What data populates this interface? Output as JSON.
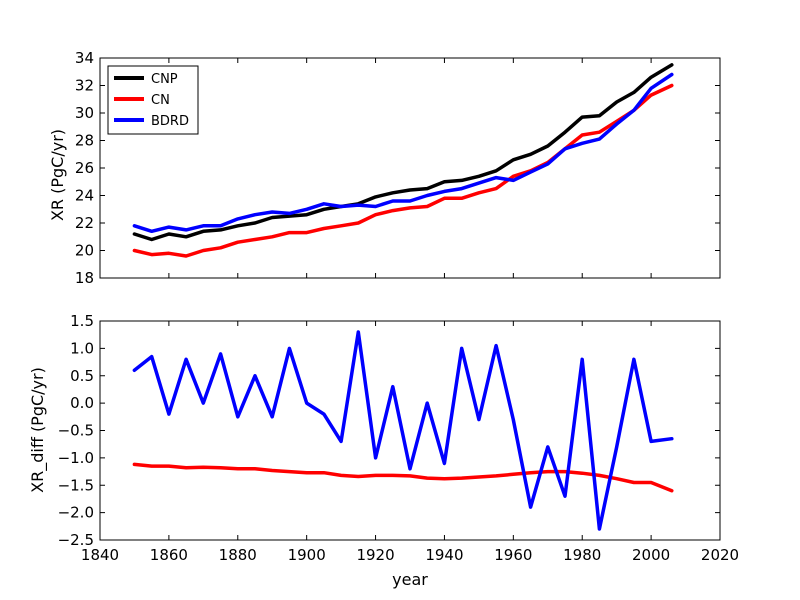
{
  "chart_data": [
    {
      "type": "line",
      "title": "",
      "xlabel": "",
      "ylabel": "XR (PgC/yr)",
      "xlim": [
        1840,
        2020
      ],
      "ylim": [
        18,
        34
      ],
      "yticks": [
        "18",
        "20",
        "22",
        "24",
        "26",
        "28",
        "30",
        "32",
        "34"
      ],
      "legend": {
        "placement": "top-left",
        "entries": [
          "CNP",
          "CN",
          "BDRD"
        ]
      },
      "x": [
        1850,
        1855,
        1860,
        1865,
        1870,
        1875,
        1880,
        1885,
        1890,
        1895,
        1900,
        1905,
        1910,
        1915,
        1920,
        1925,
        1930,
        1935,
        1940,
        1945,
        1950,
        1955,
        1960,
        1965,
        1970,
        1975,
        1980,
        1985,
        1990,
        1995,
        2000,
        2006
      ],
      "series": [
        {
          "name": "CNP",
          "color": "#000000",
          "values": [
            21.2,
            20.8,
            21.2,
            21.0,
            21.4,
            21.5,
            21.8,
            22.0,
            22.4,
            22.5,
            22.6,
            23.0,
            23.2,
            23.4,
            23.9,
            24.2,
            24.4,
            24.5,
            25.0,
            25.1,
            25.4,
            25.8,
            26.6,
            27.0,
            27.6,
            28.6,
            29.7,
            29.8,
            30.8,
            31.5,
            32.6,
            33.5
          ]
        },
        {
          "name": "CN",
          "color": "#ff0000",
          "values": [
            20.0,
            19.7,
            19.8,
            19.6,
            20.0,
            20.2,
            20.6,
            20.8,
            21.0,
            21.3,
            21.3,
            21.6,
            21.8,
            22.0,
            22.6,
            22.9,
            23.1,
            23.2,
            23.8,
            23.8,
            24.2,
            24.5,
            25.4,
            25.8,
            26.4,
            27.4,
            28.4,
            28.6,
            29.4,
            30.2,
            31.3,
            32.0
          ]
        },
        {
          "name": "BDRD",
          "color": "#0000ff",
          "values": [
            21.8,
            21.4,
            21.7,
            21.5,
            21.8,
            21.8,
            22.3,
            22.6,
            22.8,
            22.7,
            23.0,
            23.4,
            23.2,
            23.3,
            23.2,
            23.6,
            23.6,
            24.0,
            24.3,
            24.5,
            24.9,
            25.3,
            25.1,
            25.7,
            26.3,
            27.4,
            27.8,
            28.1,
            29.2,
            30.2,
            31.8,
            32.8
          ]
        }
      ]
    },
    {
      "type": "line",
      "title": "",
      "xlabel": "year",
      "ylabel": "XR_diff (PgC/yr)",
      "xlim": [
        1840,
        2020
      ],
      "ylim": [
        -2.5,
        1.5
      ],
      "xticks": [
        "1840",
        "1860",
        "1880",
        "1900",
        "1920",
        "1940",
        "1960",
        "1980",
        "2000",
        "2020"
      ],
      "yticks": [
        "−2.5",
        "−2.0",
        "−1.5",
        "−1.0",
        "−0.5",
        "0.0",
        "0.5",
        "1.0",
        "1.5"
      ],
      "x": [
        1850,
        1855,
        1860,
        1865,
        1870,
        1875,
        1880,
        1885,
        1890,
        1895,
        1900,
        1905,
        1910,
        1915,
        1920,
        1925,
        1930,
        1935,
        1940,
        1945,
        1950,
        1955,
        1960,
        1965,
        1970,
        1975,
        1980,
        1985,
        1990,
        1995,
        2000,
        2006
      ],
      "series": [
        {
          "name": "CN",
          "color": "#ff0000",
          "values": [
            -1.12,
            -1.15,
            -1.15,
            -1.18,
            -1.17,
            -1.18,
            -1.2,
            -1.2,
            -1.23,
            -1.25,
            -1.27,
            -1.27,
            -1.32,
            -1.34,
            -1.32,
            -1.32,
            -1.33,
            -1.37,
            -1.38,
            -1.37,
            -1.35,
            -1.33,
            -1.3,
            -1.27,
            -1.25,
            -1.25,
            -1.28,
            -1.32,
            -1.38,
            -1.45,
            -1.45,
            -1.6
          ]
        },
        {
          "name": "BDRD",
          "color": "#0000ff",
          "values": [
            0.6,
            0.85,
            -0.2,
            0.8,
            0.0,
            0.9,
            -0.25,
            0.5,
            -0.25,
            1.0,
            0.0,
            -0.2,
            -0.7,
            1.3,
            -1.0,
            0.3,
            -1.2,
            0.0,
            -1.1,
            1.0,
            -0.3,
            1.05,
            -0.3,
            -1.9,
            -0.8,
            -1.7,
            0.8,
            -2.3,
            -0.8,
            0.8,
            -0.7,
            -0.65
          ]
        }
      ]
    }
  ]
}
